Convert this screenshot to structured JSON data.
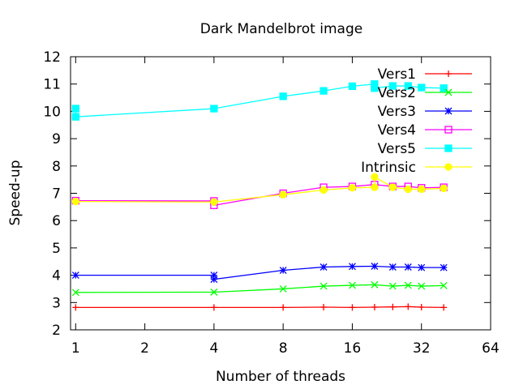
{
  "chart_data": {
    "type": "line",
    "title": "Dark Mandelbrot image",
    "xlabel": "Number of threads",
    "ylabel": "Speed-up",
    "x_scale": "log2",
    "xlim": [
      0.95,
      64
    ],
    "ylim": [
      2,
      12
    ],
    "x_ticks": [
      1,
      2,
      4,
      8,
      16,
      32,
      64
    ],
    "y_ticks": [
      2,
      3,
      4,
      5,
      6,
      7,
      8,
      9,
      10,
      11,
      12
    ],
    "legend_position": "top-right",
    "grid": false,
    "series": [
      {
        "name": "Vers1",
        "color": "#ff0000",
        "marker": "plus",
        "points": [
          [
            1,
            2.82
          ],
          [
            4,
            2.82
          ],
          [
            8,
            2.82
          ],
          [
            12,
            2.83
          ],
          [
            16,
            2.82
          ],
          [
            20,
            2.83
          ],
          [
            24,
            2.84
          ],
          [
            28,
            2.85
          ],
          [
            32,
            2.83
          ],
          [
            40,
            2.82
          ]
        ]
      },
      {
        "name": "Vers2",
        "color": "#00ff00",
        "marker": "cross",
        "points": [
          [
            1,
            3.37
          ],
          [
            4,
            3.38
          ],
          [
            8,
            3.5
          ],
          [
            12,
            3.6
          ],
          [
            16,
            3.63
          ],
          [
            20,
            3.65
          ],
          [
            24,
            3.6
          ],
          [
            28,
            3.63
          ],
          [
            32,
            3.6
          ],
          [
            40,
            3.62
          ]
        ]
      },
      {
        "name": "Vers3",
        "color": "#0000ff",
        "marker": "star",
        "points": [
          [
            1,
            4.0
          ],
          [
            4,
            4.0
          ],
          [
            4,
            3.85
          ],
          [
            8,
            4.18
          ],
          [
            12,
            4.3
          ],
          [
            16,
            4.32
          ],
          [
            20,
            4.33
          ],
          [
            24,
            4.3
          ],
          [
            28,
            4.3
          ],
          [
            32,
            4.28
          ],
          [
            40,
            4.28
          ]
        ]
      },
      {
        "name": "Vers4",
        "color": "#ff00ff",
        "marker": "box",
        "points": [
          [
            1,
            6.73
          ],
          [
            4,
            6.72
          ],
          [
            4,
            6.56
          ],
          [
            8,
            7.0
          ],
          [
            12,
            7.22
          ],
          [
            16,
            7.25
          ],
          [
            20,
            7.32
          ],
          [
            24,
            7.25
          ],
          [
            28,
            7.25
          ],
          [
            32,
            7.2
          ],
          [
            40,
            7.22
          ]
        ]
      },
      {
        "name": "Vers5",
        "color": "#00ffff",
        "marker": "filled-box",
        "points": [
          [
            1,
            10.1
          ],
          [
            1,
            9.8
          ],
          [
            4,
            10.1
          ],
          [
            8,
            10.55
          ],
          [
            12,
            10.75
          ],
          [
            16,
            10.92
          ],
          [
            20,
            11.0
          ],
          [
            20,
            10.85
          ],
          [
            24,
            10.93
          ],
          [
            28,
            10.93
          ],
          [
            32,
            10.87
          ],
          [
            40,
            10.85
          ]
        ]
      },
      {
        "name": "Intrinsic",
        "color": "#ffff00",
        "marker": "filled-circle",
        "points": [
          [
            1,
            6.7
          ],
          [
            4,
            6.68
          ],
          [
            8,
            6.95
          ],
          [
            12,
            7.12
          ],
          [
            16,
            7.2
          ],
          [
            20,
            7.22
          ],
          [
            20,
            7.6
          ],
          [
            24,
            7.22
          ],
          [
            28,
            7.15
          ],
          [
            32,
            7.15
          ],
          [
            40,
            7.18
          ]
        ]
      }
    ]
  }
}
